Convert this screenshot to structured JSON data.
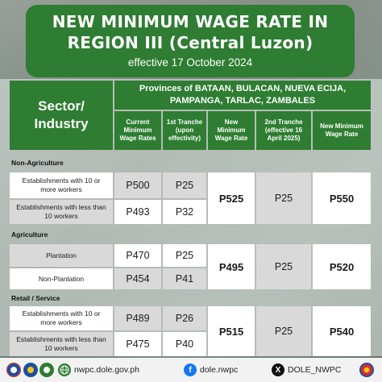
{
  "header": {
    "title_line1": "NEW MINIMUM WAGE RATE IN",
    "title_line2": "REGION III (Central Luzon)",
    "effective": "effective 17 October 2024"
  },
  "table": {
    "sector_header": "Sector/\nIndustry",
    "provinces_header": "Provinces of BATAAN, BULACAN, NUEVA ECIJA, PAMPANGA, TARLAC, ZAMBALES",
    "columns": [
      "Current Minimum Wage Rates",
      "1st Tranche (upon effectivity)",
      "New Minimum Wage Rate",
      "2nd Tranche (effective 16 April 2025)",
      "New Minimum Wage Rate"
    ],
    "groups": [
      {
        "name": "Non-Agriculture",
        "rows": [
          {
            "label": "Establishments with 10 or more workers",
            "current": "P500",
            "tranche1": "P25"
          },
          {
            "label": "Establishments with less than 10 workers",
            "current": "P493",
            "tranche1": "P32"
          }
        ],
        "new_rate": "P525",
        "tranche2": "P25",
        "final_rate": "P550"
      },
      {
        "name": "Agriculture",
        "rows": [
          {
            "label": "Plantation",
            "current": "P470",
            "tranche1": "P25"
          },
          {
            "label": "Non-Plantation",
            "current": "P454",
            "tranche1": "P41"
          }
        ],
        "new_rate": "P495",
        "tranche2": "P25",
        "final_rate": "P520"
      },
      {
        "name": "Retail / Service",
        "rows": [
          {
            "label": "Establishments with 10 or more workers",
            "current": "P489",
            "tranche1": "P26"
          },
          {
            "label": "Establishments with less than 10 workers",
            "current": "P475",
            "tranche1": "P40"
          }
        ],
        "new_rate": "P515",
        "tranche2": "P25",
        "final_rate": "P540"
      }
    ]
  },
  "footer": {
    "website": "nwpc.dole.gov.ph",
    "facebook": "dole.nwpc",
    "x_handle": "DOLE_NWPC",
    "icons": [
      "dole-logo",
      "nwpc-logo",
      "globe-icon",
      "facebook-icon",
      "x-icon",
      "bagong-pilipinas-logo"
    ]
  },
  "colors": {
    "header_green": "#2e7d32",
    "cell_gray": "#d9d9d9",
    "cell_white": "#ffffff"
  }
}
